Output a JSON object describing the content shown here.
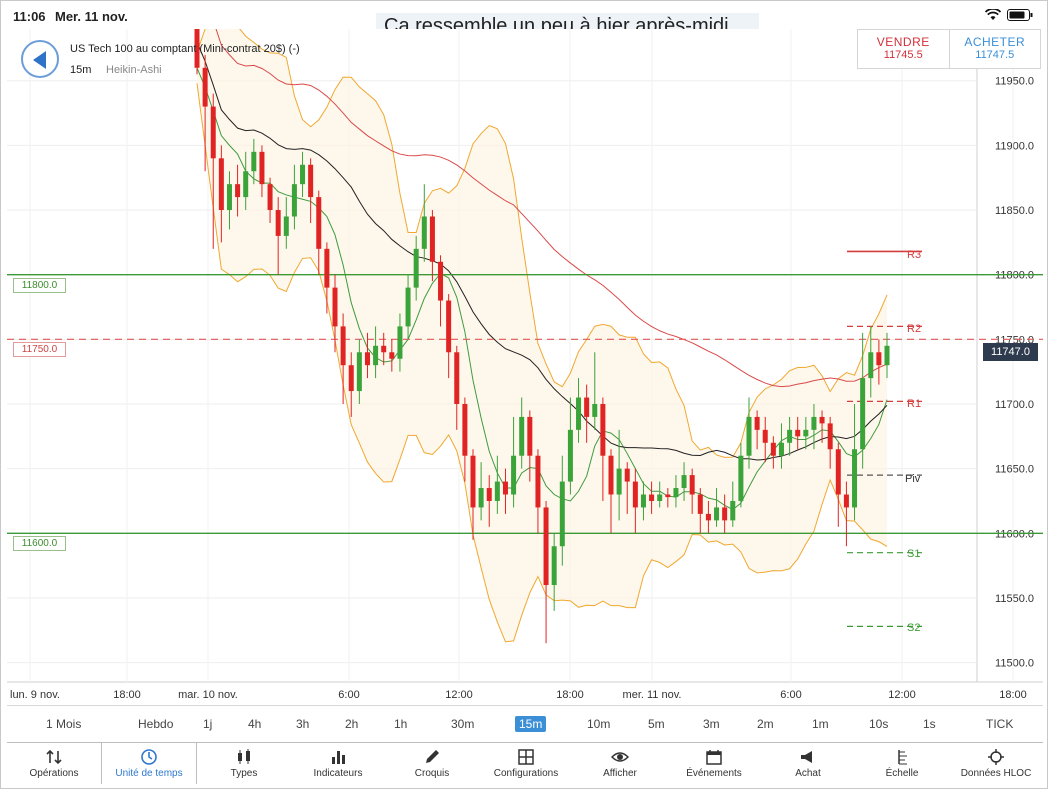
{
  "status": {
    "time": "11:06",
    "date": "Mer. 11 nov."
  },
  "caption": "Ça ressemble un peu à hier après-midi ...",
  "instrument": {
    "name": "US Tech 100 au comptant (Mini-contrat 20$) (-)",
    "timeframe": "15m",
    "chart_type": "Heikin-Ashi"
  },
  "trade": {
    "sell_label": "VENDRE",
    "sell_price": "11745.5",
    "buy_label": "ACHETER",
    "buy_price": "11747.5"
  },
  "levels": {
    "l1": "11800.0",
    "l2": "11750.0",
    "l3": "11600.0",
    "current": "11747.0"
  },
  "pivots": {
    "r3": "R3",
    "r2": "R2",
    "r1": "R1",
    "piv": "Piv",
    "s1": "S1",
    "s2": "S2"
  },
  "colors": {
    "bull": "#3aa33a",
    "bear": "#e02424",
    "bollinger": "#f0a830",
    "ma_red": "#d94a4a",
    "ma_green": "#3f9b3f",
    "ma_black": "#222222",
    "line_green": "#3c9a35",
    "line_red_dash": "#e05a5a"
  },
  "chart_data": {
    "type": "candlestick",
    "style": "Heikin-Ashi",
    "y_ticks": [
      "11950.0",
      "11900.0",
      "11850.0",
      "11800.0",
      "11750.0",
      "11700.0",
      "11650.0",
      "11600.0",
      "11550.0",
      "11500.0"
    ],
    "ylim": [
      11485,
      11990
    ],
    "x_ticks": [
      "lun. 9 nov.",
      "18:00",
      "mar. 10 nov.",
      "6:00",
      "12:00",
      "18:00",
      "mer. 11 nov.",
      "6:00",
      "12:00",
      "18:00"
    ],
    "horizontal_lines": [
      11800,
      11750,
      11600
    ],
    "pivots": {
      "R3": 11818,
      "R2": 11760,
      "R1": 11702,
      "Piv": 11645,
      "S1": 11585,
      "S2": 11528
    },
    "candles": [
      [
        11990,
        11960,
        11995,
        11955
      ],
      [
        11960,
        11930,
        11970,
        11880
      ],
      [
        11930,
        11890,
        11940,
        11820
      ],
      [
        11890,
        11850,
        11900,
        11825
      ],
      [
        11850,
        11870,
        11880,
        11835
      ],
      [
        11870,
        11860,
        11885,
        11845
      ],
      [
        11860,
        11880,
        11895,
        11850
      ],
      [
        11880,
        11895,
        11905,
        11870
      ],
      [
        11895,
        11870,
        11900,
        11860
      ],
      [
        11870,
        11850,
        11875,
        11840
      ],
      [
        11850,
        11830,
        11860,
        11800
      ],
      [
        11830,
        11845,
        11860,
        11820
      ],
      [
        11845,
        11870,
        11885,
        11835
      ],
      [
        11870,
        11885,
        11895,
        11860
      ],
      [
        11885,
        11860,
        11890,
        11840
      ],
      [
        11860,
        11820,
        11865,
        11800
      ],
      [
        11820,
        11790,
        11825,
        11770
      ],
      [
        11790,
        11760,
        11800,
        11740
      ],
      [
        11760,
        11730,
        11770,
        11700
      ],
      [
        11730,
        11710,
        11740,
        11690
      ],
      [
        11710,
        11740,
        11750,
        11700
      ],
      [
        11740,
        11730,
        11755,
        11720
      ],
      [
        11730,
        11745,
        11760,
        11720
      ],
      [
        11745,
        11740,
        11755,
        11730
      ],
      [
        11740,
        11735,
        11750,
        11725
      ],
      [
        11735,
        11760,
        11770,
        11725
      ],
      [
        11760,
        11790,
        11800,
        11750
      ],
      [
        11790,
        11820,
        11830,
        11780
      ],
      [
        11820,
        11845,
        11870,
        11810
      ],
      [
        11845,
        11810,
        11850,
        11795
      ],
      [
        11810,
        11780,
        11815,
        11760
      ],
      [
        11780,
        11740,
        11785,
        11720
      ],
      [
        11740,
        11700,
        11745,
        11680
      ],
      [
        11700,
        11660,
        11705,
        11640
      ],
      [
        11660,
        11620,
        11665,
        11595
      ],
      [
        11620,
        11635,
        11655,
        11610
      ],
      [
        11635,
        11625,
        11645,
        11605
      ],
      [
        11625,
        11640,
        11660,
        11615
      ],
      [
        11640,
        11630,
        11650,
        11615
      ],
      [
        11630,
        11660,
        11690,
        11620
      ],
      [
        11660,
        11690,
        11705,
        11650
      ],
      [
        11690,
        11660,
        11695,
        11640
      ],
      [
        11660,
        11620,
        11665,
        11600
      ],
      [
        11620,
        11560,
        11625,
        11515
      ],
      [
        11560,
        11590,
        11600,
        11540
      ],
      [
        11590,
        11640,
        11660,
        11575
      ],
      [
        11640,
        11680,
        11705,
        11630
      ],
      [
        11680,
        11705,
        11720,
        11670
      ],
      [
        11705,
        11690,
        11715,
        11670
      ],
      [
        11690,
        11700,
        11740,
        11680
      ],
      [
        11700,
        11660,
        11705,
        11625
      ],
      [
        11660,
        11630,
        11665,
        11600
      ],
      [
        11630,
        11650,
        11680,
        11610
      ],
      [
        11650,
        11640,
        11655,
        11615
      ],
      [
        11640,
        11620,
        11650,
        11600
      ],
      [
        11620,
        11630,
        11640,
        11610
      ],
      [
        11630,
        11625,
        11640,
        11615
      ],
      [
        11625,
        11630,
        11640,
        11620
      ],
      [
        11630,
        11628,
        11635,
        11620
      ],
      [
        11628,
        11635,
        11645,
        11620
      ],
      [
        11635,
        11645,
        11655,
        11625
      ],
      [
        11645,
        11630,
        11650,
        11615
      ],
      [
        11630,
        11615,
        11635,
        11600
      ],
      [
        11615,
        11610,
        11625,
        11600
      ],
      [
        11610,
        11620,
        11635,
        11605
      ],
      [
        11620,
        11610,
        11630,
        11600
      ],
      [
        11610,
        11625,
        11640,
        11605
      ],
      [
        11625,
        11660,
        11670,
        11620
      ],
      [
        11660,
        11690,
        11705,
        11650
      ],
      [
        11690,
        11680,
        11695,
        11665
      ],
      [
        11680,
        11670,
        11690,
        11655
      ],
      [
        11670,
        11660,
        11675,
        11650
      ],
      [
        11660,
        11670,
        11685,
        11650
      ],
      [
        11670,
        11680,
        11690,
        11660
      ],
      [
        11680,
        11675,
        11690,
        11665
      ],
      [
        11675,
        11680,
        11690,
        11665
      ],
      [
        11680,
        11690,
        11700,
        11665
      ],
      [
        11690,
        11685,
        11695,
        11670
      ],
      [
        11685,
        11665,
        11690,
        11650
      ],
      [
        11665,
        11630,
        11670,
        11605
      ],
      [
        11630,
        11620,
        11640,
        11590
      ],
      [
        11620,
        11665,
        11700,
        11610
      ],
      [
        11665,
        11720,
        11755,
        11650
      ],
      [
        11720,
        11740,
        11760,
        11705
      ],
      [
        11740,
        11730,
        11750,
        11715
      ],
      [
        11730,
        11745,
        11755,
        11720
      ]
    ]
  },
  "timeframes": [
    "1 Mois",
    "Hebdo",
    "1j",
    "4h",
    "3h",
    "2h",
    "1h",
    "30m",
    "15m",
    "10m",
    "5m",
    "3m",
    "2m",
    "1m",
    "10s",
    "1s",
    "TICK"
  ],
  "active_timeframe": "15m",
  "tools": [
    {
      "label": "Opérations",
      "icon": "arrows-icon"
    },
    {
      "label": "Unité de temps",
      "icon": "clock-icon"
    },
    {
      "label": "Types",
      "icon": "candles-icon"
    },
    {
      "label": "Indicateurs",
      "icon": "bars-icon"
    },
    {
      "label": "Croquis",
      "icon": "pencil-icon"
    },
    {
      "label": "Configurations",
      "icon": "layout-icon"
    },
    {
      "label": "Afficher",
      "icon": "eye-icon"
    },
    {
      "label": "Événements",
      "icon": "calendar-icon"
    },
    {
      "label": "Achat",
      "icon": "megaphone-icon"
    },
    {
      "label": "Échelle",
      "icon": "scale-icon"
    },
    {
      "label": "Données HLOC",
      "icon": "crosshair-icon"
    }
  ]
}
